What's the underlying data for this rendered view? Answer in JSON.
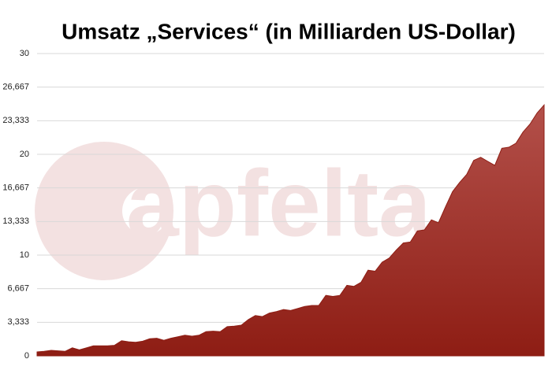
{
  "chart_data": {
    "type": "area",
    "title": "Umsatz „Services“ (in Milliarden US-Dollar)",
    "watermark": "apfelta",
    "color": "#8e1d14",
    "values": [
      0.4,
      0.45,
      0.55,
      0.5,
      0.45,
      0.8,
      0.6,
      0.8,
      1.0,
      1.0,
      1.0,
      1.05,
      1.5,
      1.4,
      1.35,
      1.45,
      1.7,
      1.75,
      1.55,
      1.75,
      1.9,
      2.05,
      1.95,
      2.05,
      2.4,
      2.45,
      2.4,
      2.9,
      2.95,
      3.05,
      3.6,
      4.0,
      3.9,
      4.25,
      4.4,
      4.6,
      4.5,
      4.7,
      4.9,
      5.0,
      5.0,
      6.0,
      5.9,
      6.0,
      7.0,
      6.9,
      7.3,
      8.5,
      8.4,
      9.3,
      9.7,
      10.5,
      11.2,
      11.3,
      12.4,
      12.5,
      13.5,
      13.2,
      14.8,
      16.3,
      17.2,
      18.0,
      19.4,
      19.7,
      19.3,
      18.9,
      20.6,
      20.7,
      21.1,
      22.2,
      23.0,
      24.1,
      24.9
    ],
    "ylim": [
      0,
      30
    ],
    "yticks": [
      0,
      {
        "value": 3.333,
        "label": "3,333"
      },
      {
        "value": 6.667,
        "label": "6,667"
      },
      10,
      {
        "value": 13.333,
        "label": "13,333"
      },
      {
        "value": 16.667,
        "label": "16,667"
      },
      20,
      {
        "value": 23.333,
        "label": "23,333"
      },
      {
        "value": 26.667,
        "label": "26,667"
      },
      30
    ],
    "grid": true
  }
}
